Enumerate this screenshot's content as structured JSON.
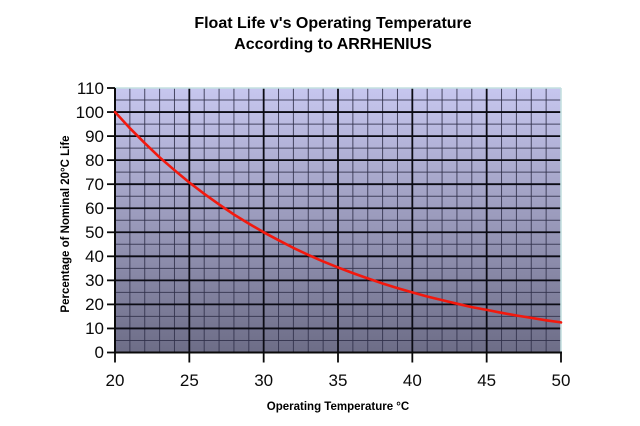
{
  "chart_data": {
    "type": "line",
    "title_lines": [
      "Float Life v's Operating Temperature",
      "According to ARRHENIUS"
    ],
    "xlabel": "Operating Temperature °C",
    "ylabel": "Percentage of Nominal 20°C Life",
    "x_range": [
      20,
      50
    ],
    "y_range": [
      0,
      110
    ],
    "x_major_step": 5,
    "x_minor_step": 1,
    "y_major_step": 10,
    "y_minor_step": 5,
    "x_ticks": [
      20,
      25,
      30,
      35,
      40,
      45,
      50
    ],
    "y_ticks": [
      110,
      100,
      90,
      80,
      70,
      60,
      50,
      40,
      30,
      20,
      10,
      0
    ],
    "grid": true,
    "legend": "none",
    "series": [
      {
        "color": "#f2190e",
        "x": [
          20,
          21,
          22,
          23,
          24,
          25,
          26,
          27,
          28,
          29,
          30,
          31,
          32,
          33,
          34,
          35,
          36,
          37,
          38,
          39,
          40,
          41,
          42,
          43,
          44,
          45,
          46,
          47,
          48,
          49,
          50
        ],
        "y": [
          100,
          93.3,
          87.1,
          81.2,
          75.8,
          70.7,
          66.0,
          61.6,
          57.4,
          53.6,
          50.0,
          46.7,
          43.5,
          40.6,
          37.9,
          35.4,
          33.0,
          30.8,
          28.7,
          26.8,
          25.0,
          23.3,
          21.8,
          20.3,
          18.9,
          17.7,
          16.5,
          15.4,
          14.4,
          13.4,
          12.5
        ]
      }
    ],
    "plot_style": {
      "gradient_top": "#c7c7ef",
      "gradient_bottom": "#6d6d87",
      "grid_minor_color": "#30304a",
      "grid_major_color": "#0b0b14",
      "border_light_color": "#c4e0e0",
      "axis_color": "#0a0a0a",
      "text_color": "#000000",
      "background": "#ffffff"
    }
  }
}
